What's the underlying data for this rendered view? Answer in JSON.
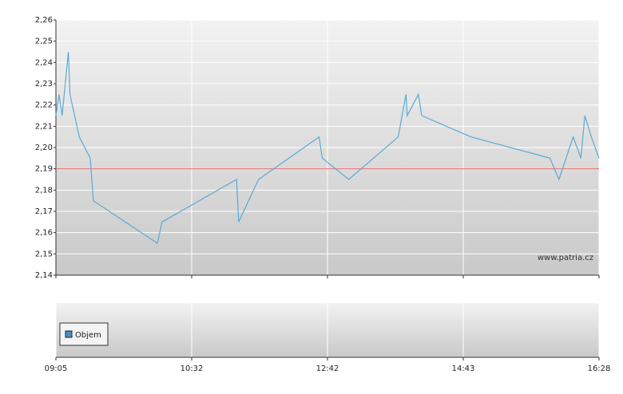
{
  "chart_data": {
    "type": "line",
    "x": [
      "09:05",
      "09:07",
      "09:09",
      "09:13",
      "09:14",
      "09:20",
      "09:27",
      "09:29",
      "10:10",
      "10:13",
      "11:15",
      "11:17",
      "11:36",
      "12:34",
      "12:37",
      "13:01",
      "13:45",
      "13:52",
      "13:53",
      "14:03",
      "14:06",
      "14:49",
      "15:50",
      "15:57",
      "16:08",
      "16:14",
      "16:17",
      "16:22",
      "16:28"
    ],
    "series": [
      {
        "color": "#5aaad6",
        "values": [
          2.215,
          2.225,
          2.215,
          2.245,
          2.225,
          2.205,
          2.195,
          2.175,
          2.155,
          2.165,
          2.185,
          2.165,
          2.185,
          2.205,
          2.195,
          2.185,
          2.205,
          2.225,
          2.215,
          2.225,
          2.215,
          2.205,
          2.195,
          2.185,
          2.205,
          2.195,
          2.215,
          2.205,
          2.195
        ]
      }
    ],
    "ylim": [
      2.14,
      2.26
    ],
    "yticks": [
      {
        "value": 2.14,
        "label": "2,14"
      },
      {
        "value": 2.15,
        "label": "2,15"
      },
      {
        "value": 2.16,
        "label": "2,16"
      },
      {
        "value": 2.17,
        "label": "2,17"
      },
      {
        "value": 2.18,
        "label": "2,18"
      },
      {
        "value": 2.19,
        "label": "2,19"
      },
      {
        "value": 2.2,
        "label": "2,20"
      },
      {
        "value": 2.21,
        "label": "2,21"
      },
      {
        "value": 2.22,
        "label": "2,22"
      },
      {
        "value": 2.23,
        "label": "2,23"
      },
      {
        "value": 2.24,
        "label": "2,24"
      },
      {
        "value": 2.25,
        "label": "2,25"
      },
      {
        "value": 2.26,
        "label": "2,26"
      }
    ],
    "xticks": [
      "09:05",
      "10:32",
      "12:42",
      "14:43",
      "16:28"
    ],
    "reference_line": {
      "value": 2.19,
      "color": "#e86a6a"
    },
    "grid": true,
    "watermark": "www.patria.cz",
    "volume_legend": {
      "label": "Objem",
      "color": "#4a90c8"
    }
  }
}
